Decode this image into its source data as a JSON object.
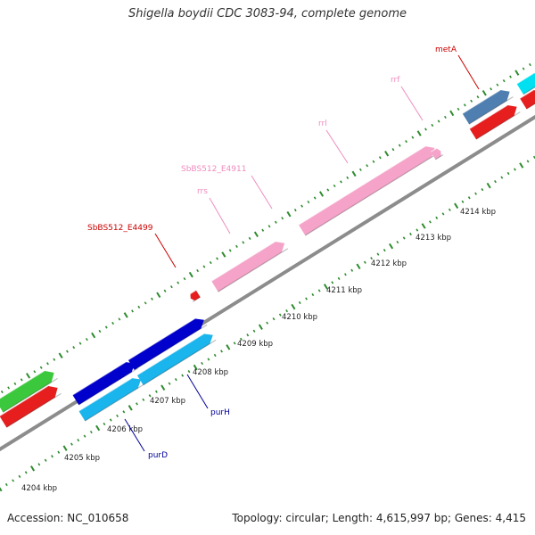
{
  "title": "Shigella boydii CDC 3083-94, complete genome",
  "footer": {
    "accession": "Accession: NC_010658",
    "summary": "Topology: circular; Length: 4,615,997 bp; Genes: 4,415"
  },
  "colors": {
    "backbone": "#8c8c8c",
    "tick": "#2e8b2e",
    "rrna": "#f5a3c8",
    "trna": "#e61e1e",
    "blue": "#0000cc",
    "cyan": "#1ab5ec",
    "green": "#3cc83c",
    "steel": "#4f7fb0",
    "cyan2": "#00e0f0"
  },
  "scale": {
    "labels": [
      "4204 kbp",
      "4205 kbp",
      "4206 kbp",
      "4207 kbp",
      "4208 kbp",
      "4209 kbp",
      "4210 kbp",
      "4211 kbp",
      "4212 kbp",
      "4213 kbp",
      "4214 kbp"
    ]
  },
  "gene_labels": [
    {
      "name": "metA",
      "color": "#cc0000"
    },
    {
      "name": "rrf",
      "color": "#f08cbe"
    },
    {
      "name": "rrl",
      "color": "#f08cbe"
    },
    {
      "name": "SbBS512_E4911",
      "color": "#f08cbe"
    },
    {
      "name": "rrs",
      "color": "#f08cbe"
    },
    {
      "name": "SbBS512_E4499",
      "color": "#cc0000"
    },
    {
      "name": "purH",
      "color": "#000099"
    },
    {
      "name": "purD",
      "color": "#000099"
    }
  ]
}
